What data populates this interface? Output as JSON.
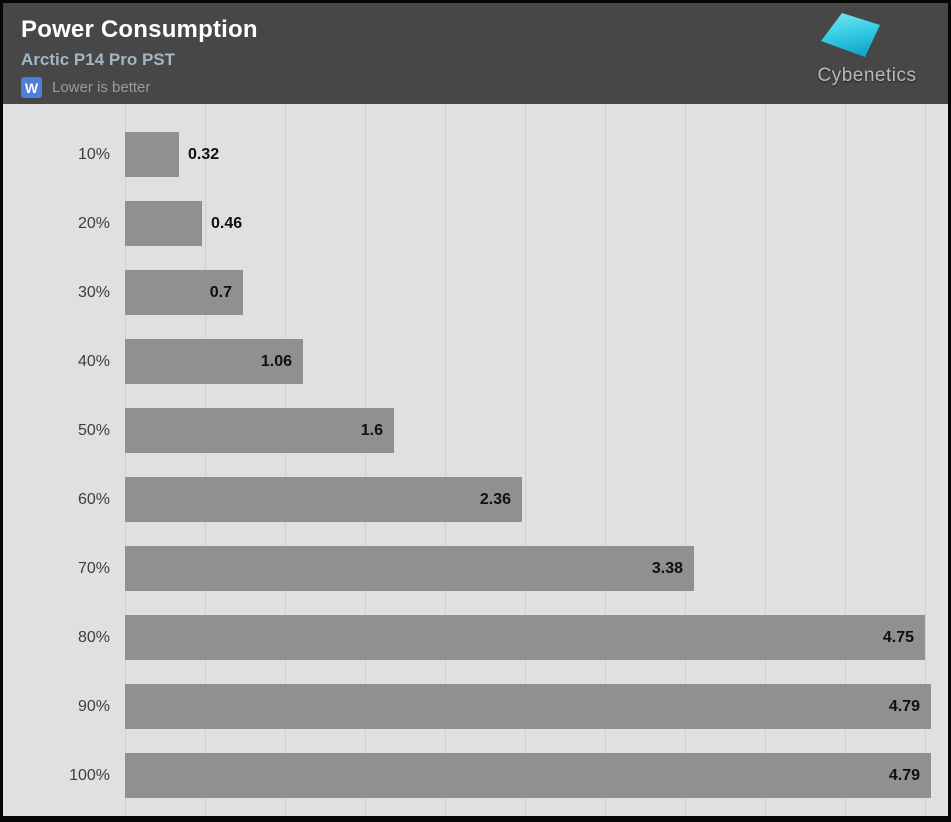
{
  "header": {
    "title": "Power Consumption",
    "subtitle": "Arctic P14 Pro PST",
    "unit_badge": "W",
    "note": "Lower is better",
    "logo_text": "Cybenetics"
  },
  "colors": {
    "header_bg": "#474747",
    "plot_bg": "#e0e0e0",
    "gridline": "#d1d1d1",
    "bar": "#909090",
    "category_label": "#3d3d3d",
    "value_label": "#101010",
    "subtitle": "#a5b6c3",
    "badge_bg": "#4a7fdb",
    "note_text": "#9a9a9a",
    "logo_text": "#b9b9b9",
    "logo_cyan_light": "#7ce7f2",
    "logo_cyan_dark": "#14a9cd"
  },
  "chart_data": {
    "type": "bar",
    "orientation": "horizontal",
    "title": "Power Consumption",
    "subtitle": "Arctic P14 Pro PST",
    "unit": "W",
    "note": "Lower is better",
    "categories": [
      "10%",
      "20%",
      "30%",
      "40%",
      "50%",
      "60%",
      "70%",
      "80%",
      "90%",
      "100%"
    ],
    "values": [
      0.32,
      0.46,
      0.7,
      1.06,
      1.6,
      2.36,
      3.38,
      4.75,
      4.79,
      4.79
    ],
    "xlim": [
      0,
      4.8
    ],
    "grid": "vertical",
    "gridline_count": 11,
    "legend": "none",
    "value_labels": "shown at bar end"
  }
}
